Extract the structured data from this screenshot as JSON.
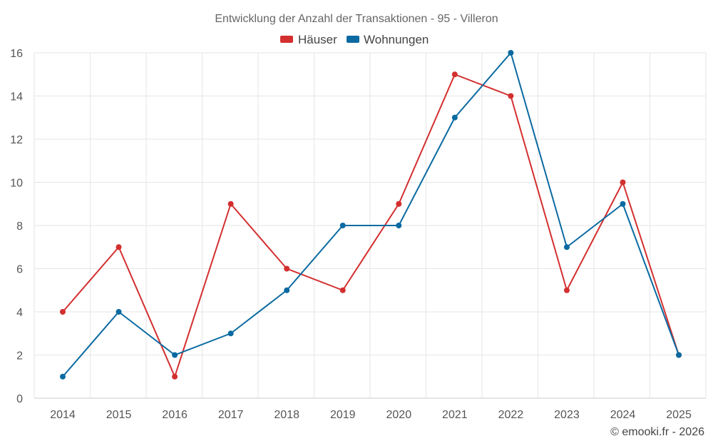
{
  "colors": {
    "haeuser": "#d32f2f",
    "wohnungen": "#0a6aa1"
  },
  "credit": "© emooki.fr - 2026",
  "chart_data": {
    "type": "line",
    "title": "Entwicklung der Anzahl der Transaktionen - 95 - Villeron",
    "xlabel": "",
    "ylabel": "",
    "categories": [
      "2014",
      "2015",
      "2016",
      "2017",
      "2018",
      "2019",
      "2020",
      "2021",
      "2022",
      "2023",
      "2024",
      "2025"
    ],
    "ylim": [
      0,
      16
    ],
    "yticks": [
      0,
      2,
      4,
      6,
      8,
      10,
      12,
      14,
      16
    ],
    "grid": true,
    "legend": "top-center",
    "series": [
      {
        "name": "Häuser",
        "color": "#d32f2f",
        "values": [
          4,
          7,
          1,
          9,
          6,
          5,
          9,
          15,
          14,
          5,
          10,
          2
        ]
      },
      {
        "name": "Wohnungen",
        "color": "#0a6aa1",
        "values": [
          1,
          4,
          2,
          3,
          5,
          8,
          8,
          13,
          16,
          7,
          9,
          2
        ]
      }
    ]
  }
}
